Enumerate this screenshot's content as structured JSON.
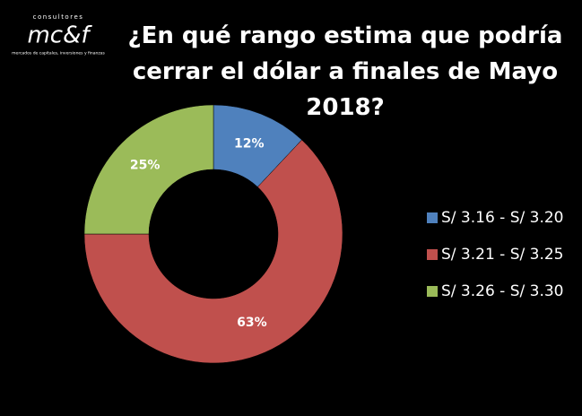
{
  "logo": {
    "name": "mc&f",
    "top": "consultores",
    "tagline": "mercados de capitales, inversiones y finanzas"
  },
  "chart_data": {
    "type": "donut",
    "title": "¿En qué rango estima que podría cerrar el dólar a finales de Mayo 2018?",
    "categories": [
      "S/ 3.16 - S/ 3.20",
      "S/ 3.21 - S/ 3.25",
      "S/ 3.26 - S/ 3.30"
    ],
    "values": [
      12,
      63,
      25
    ],
    "value_labels": [
      "12%",
      "63%",
      "25%"
    ],
    "colors": [
      "#4f81bd",
      "#c0504d",
      "#9bbb59"
    ],
    "legend": "right"
  }
}
